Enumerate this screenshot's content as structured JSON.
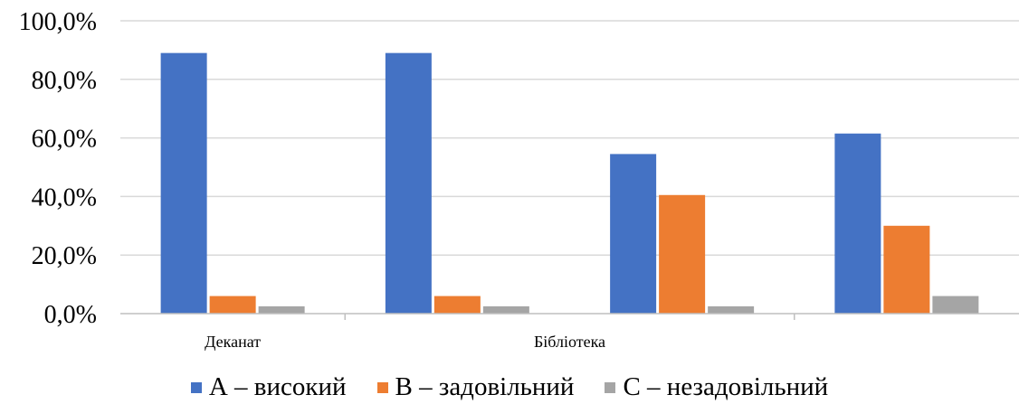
{
  "chart_data": {
    "type": "bar",
    "categories": [
      "Деканат",
      "",
      "Бібліотека",
      ""
    ],
    "series": [
      {
        "name": "А – високий",
        "color": "#4472C4",
        "values": [
          89.0,
          89.0,
          54.5,
          61.5
        ]
      },
      {
        "name": "В – задовільний",
        "color": "#ED7D31",
        "values": [
          6.0,
          6.0,
          40.5,
          30.0
        ]
      },
      {
        "name": "С – незадовільний",
        "color": "#A5A5A5",
        "values": [
          2.5,
          2.5,
          2.5,
          6.0
        ]
      }
    ],
    "y_ticks": [
      "0,0%",
      "20,0%",
      "40,0%",
      "60,0%",
      "80,0%",
      "100,0%"
    ],
    "ylim": [
      0,
      100
    ],
    "grid": true,
    "legend_position": "bottom"
  }
}
